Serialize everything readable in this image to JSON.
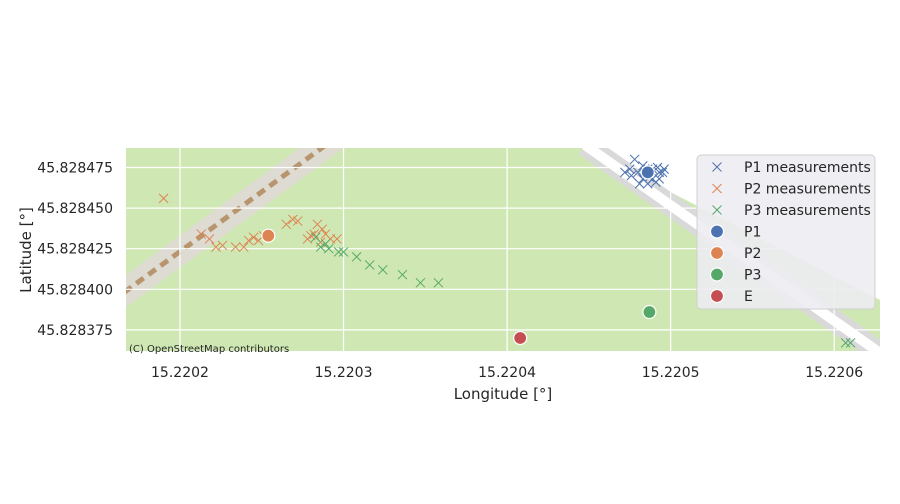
{
  "chart_data": {
    "type": "scatter",
    "xlabel": "Longitude [°]",
    "ylabel": "Latitude [°]",
    "xlim": [
      15.220167,
      15.220628
    ],
    "ylim": [
      45.828362,
      45.828487
    ],
    "xticks": [
      15.2202,
      15.2203,
      15.2204,
      15.2205,
      15.2206
    ],
    "xtick_labels": [
      "15.2202",
      "15.2203",
      "15.2204",
      "15.2205",
      "15.2206"
    ],
    "yticks": [
      45.828375,
      45.8284,
      45.828425,
      45.82845,
      45.828475
    ],
    "ytick_labels": [
      "45.828375",
      "45.828400",
      "45.828425",
      "45.828450",
      "45.828475"
    ],
    "grid": true,
    "legend_position": "upper-right",
    "attribution": "(C) OpenStreetMap contributors",
    "series": [
      {
        "name": "P1 measurements",
        "marker": "x",
        "color": "#4c72b0",
        "points": [
          [
            15.220478,
            45.82848
          ],
          [
            15.220475,
            45.828474
          ],
          [
            15.220472,
            45.828472
          ],
          [
            15.22048,
            45.828472
          ],
          [
            15.220483,
            45.828468
          ],
          [
            15.220486,
            45.828465
          ],
          [
            15.220489,
            45.828468
          ],
          [
            15.220493,
            45.828472
          ],
          [
            15.220496,
            45.828474
          ],
          [
            15.220493,
            45.828468
          ],
          [
            15.220486,
            45.828474
          ],
          [
            15.220491,
            45.828466
          ],
          [
            15.220481,
            45.828465
          ],
          [
            15.220484,
            45.828472
          ],
          [
            15.220495,
            45.828472
          ],
          [
            15.220489,
            45.828474
          ],
          [
            15.220476,
            45.82847
          ],
          [
            15.220483,
            45.828476
          ],
          [
            15.220487,
            45.828469
          ],
          [
            15.220492,
            45.828475
          ]
        ]
      },
      {
        "name": "P2 measurements",
        "marker": "x",
        "color": "#dd8452",
        "points": [
          [
            15.22019,
            45.828456
          ],
          [
            15.220213,
            45.828434
          ],
          [
            15.220218,
            45.828431
          ],
          [
            15.220222,
            45.828426
          ],
          [
            15.220226,
            45.828427
          ],
          [
            15.220234,
            45.828426
          ],
          [
            15.220239,
            45.828426
          ],
          [
            15.220242,
            45.82843
          ],
          [
            15.220245,
            45.828432
          ],
          [
            15.220248,
            45.82843
          ],
          [
            15.220251,
            45.828433
          ],
          [
            15.220265,
            45.82844
          ],
          [
            15.220269,
            45.828443
          ],
          [
            15.220272,
            45.828442
          ],
          [
            15.220278,
            45.828431
          ],
          [
            15.220282,
            45.828434
          ],
          [
            15.220284,
            45.82844
          ],
          [
            15.220287,
            45.828437
          ],
          [
            15.220289,
            45.828434
          ],
          [
            15.220292,
            45.828431
          ],
          [
            15.220296,
            45.828431
          ],
          [
            15.220286,
            45.828429
          ],
          [
            15.22028,
            45.828433
          ]
        ]
      },
      {
        "name": "P3 measurements",
        "marker": "x",
        "color": "#55a868",
        "points": [
          [
            15.220283,
            45.828432
          ],
          [
            15.220286,
            45.828426
          ],
          [
            15.220289,
            45.828428
          ],
          [
            15.220291,
            45.828425
          ],
          [
            15.220297,
            45.828423
          ],
          [
            15.2203,
            45.828423
          ],
          [
            15.220308,
            45.82842
          ],
          [
            15.220316,
            45.828415
          ],
          [
            15.220324,
            45.828412
          ],
          [
            15.220336,
            45.828409
          ],
          [
            15.220347,
            45.828404
          ],
          [
            15.220358,
            45.828404
          ],
          [
            15.220607,
            45.828367
          ],
          [
            15.22061,
            45.828367
          ]
        ]
      },
      {
        "name": "P1",
        "marker": "o",
        "color": "#4c72b0",
        "points": [
          [
            15.220486,
            45.828472
          ]
        ]
      },
      {
        "name": "P2",
        "marker": "o",
        "color": "#dd8452",
        "points": [
          [
            15.220254,
            45.828433
          ]
        ]
      },
      {
        "name": "P3",
        "marker": "o",
        "color": "#55a868",
        "points": [
          [
            15.220487,
            45.828386
          ]
        ]
      },
      {
        "name": "E",
        "marker": "o",
        "color": "#c44e52",
        "points": [
          [
            15.220408,
            45.82837
          ]
        ]
      }
    ]
  }
}
